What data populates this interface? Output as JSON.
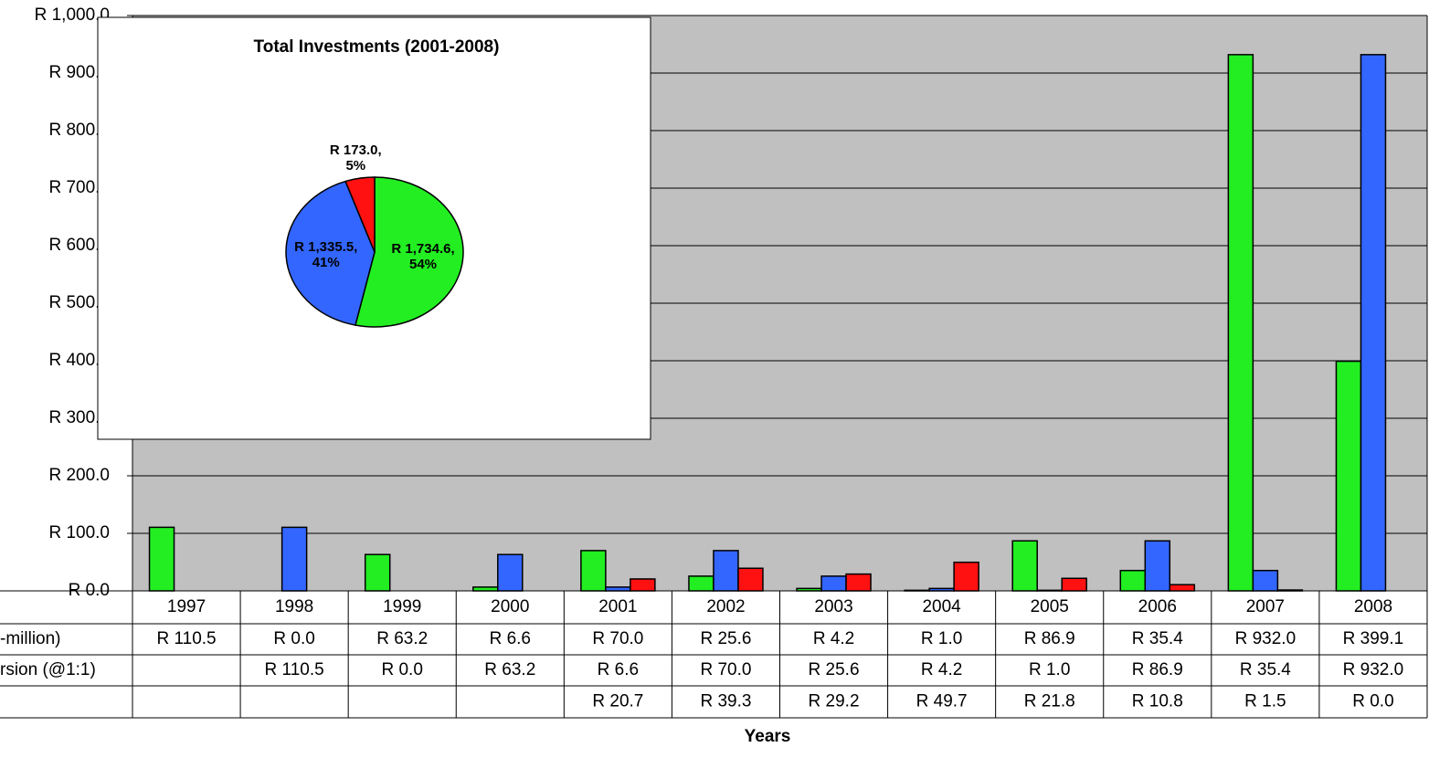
{
  "chart_data": [
    {
      "type": "bar",
      "xlabel": "Years",
      "categories": [
        "1997",
        "1998",
        "1999",
        "2000",
        "2001",
        "2002",
        "2003",
        "2004",
        "2005",
        "2006",
        "2007",
        "2008"
      ],
      "series": [
        {
          "name": "-million)",
          "color": "#22ee22",
          "values": [
            110.5,
            0.0,
            63.2,
            6.6,
            70.0,
            25.6,
            4.2,
            1.0,
            86.9,
            35.4,
            932.0,
            399.1
          ],
          "value_labels": [
            "R 110.5",
            "R 0.0",
            "R 63.2",
            "R 6.6",
            "R 70.0",
            "R 25.6",
            "R 4.2",
            "R 1.0",
            "R 86.9",
            "R 35.4",
            "R 932.0",
            "R 399.1"
          ]
        },
        {
          "name": "rsion (@1:1)",
          "color": "#3366ff",
          "values": [
            null,
            110.5,
            0.0,
            63.2,
            6.6,
            70.0,
            25.6,
            4.2,
            1.0,
            86.9,
            35.4,
            932.0
          ],
          "value_labels": [
            null,
            "R 110.5",
            "R 0.0",
            "R 63.2",
            "R 6.6",
            "R 70.0",
            "R 25.6",
            "R 4.2",
            "R 1.0",
            "R 86.9",
            "R 35.4",
            "R 932.0"
          ]
        },
        {
          "color": "#ff1111",
          "values": [
            null,
            null,
            null,
            null,
            20.7,
            39.3,
            29.2,
            49.7,
            21.8,
            10.8,
            1.5,
            0.0
          ],
          "value_labels": [
            null,
            null,
            null,
            null,
            "R 20.7",
            "R 39.3",
            "R 29.2",
            "R 49.7",
            "R 21.8",
            "R 10.8",
            "R 1.5",
            "R 0.0"
          ]
        }
      ],
      "ylim": [
        0,
        1000
      ],
      "yticks": [
        {
          "value": 0,
          "label": "R 0.0"
        },
        {
          "value": 100,
          "label": "R 100.0"
        },
        {
          "value": 200,
          "label": "R 200.0"
        },
        {
          "value": 300,
          "label": "R 300.0"
        },
        {
          "value": 400,
          "label": "R 400.0"
        },
        {
          "value": 500,
          "label": "R 500.0"
        },
        {
          "value": 600,
          "label": "R 600.0"
        },
        {
          "value": 700,
          "label": "R 700.0"
        },
        {
          "value": 800,
          "label": "R 800.0"
        },
        {
          "value": 900,
          "label": "R 900.0"
        },
        {
          "value": 1000,
          "label": "R 1,000.0"
        }
      ],
      "grid": true
    },
    {
      "type": "pie",
      "title": "Total Investments (2001-2008)",
      "values": [
        1734.6,
        1335.5,
        173.0
      ],
      "value_labels": [
        "R 1,734.6, 54%",
        "R 1,335.5, 41%",
        "R 173.0, 5%"
      ],
      "colors": [
        "#22ee22",
        "#3366ff",
        "#ff1111"
      ]
    }
  ]
}
